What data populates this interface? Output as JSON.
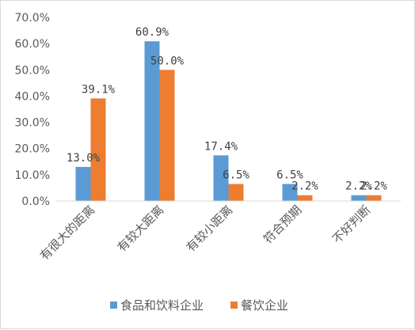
{
  "chart_data": {
    "type": "bar",
    "title": "",
    "xlabel": "",
    "ylabel": "",
    "ylim": [
      0,
      70
    ],
    "ytick_values": [
      0,
      10,
      20,
      30,
      40,
      50,
      60,
      70
    ],
    "ytick_labels": [
      "0.0%",
      "10.0%",
      "20.0%",
      "30.0%",
      "40.0%",
      "50.0%",
      "60.0%",
      "70.0%"
    ],
    "categories": [
      "有很大的距离",
      "有较大距离",
      "有较小距离",
      "符合预期",
      "不好判断"
    ],
    "series": [
      {
        "name": "食品和饮料企业",
        "color": "#5b9bd5",
        "values": [
          13.0,
          60.9,
          17.4,
          6.5,
          2.2
        ],
        "labels": [
          "13.0%",
          "60.9%",
          "17.4%",
          "6.5%",
          "2.2%"
        ]
      },
      {
        "name": "餐饮企业",
        "color": "#ed7d31",
        "values": [
          39.1,
          50.0,
          6.5,
          2.2,
          2.2
        ],
        "labels": [
          "39.1%",
          "50.0%",
          "6.5%",
          "2.2%",
          "2.2%"
        ]
      }
    ],
    "grid": false,
    "legend_position": "bottom"
  }
}
